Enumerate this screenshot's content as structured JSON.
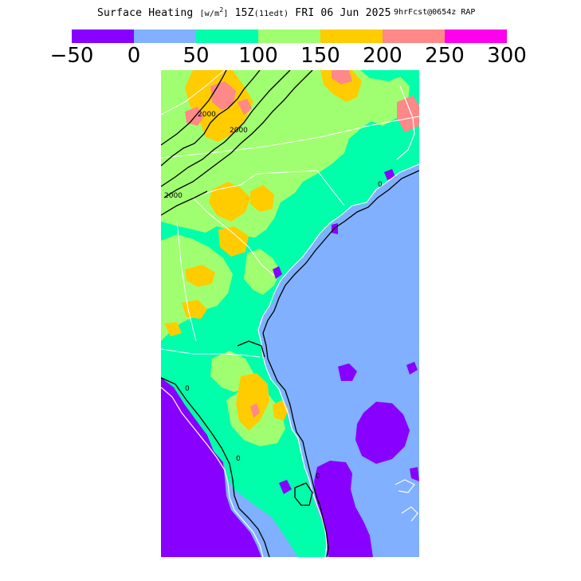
{
  "title": {
    "field": "Surface Heating",
    "unit_prefix": "[w/m",
    "unit_exp": "2",
    "unit_suffix": "]",
    "valid_time": "15Z",
    "local_time": "(11edt)",
    "date": "FRI 06 Jun 2025",
    "forecast": "9hrFcst@0654z",
    "model": "RAP"
  },
  "colorbar": {
    "colors": [
      "#8800ff",
      "#80b0ff",
      "#00ffaa",
      "#a0ff70",
      "#ffcc00",
      "#ff8888",
      "#ff00ee"
    ],
    "tick_labels": [
      "−50",
      "0",
      "50",
      "100",
      "150",
      "200",
      "250",
      "300"
    ]
  },
  "map": {
    "region": "US Southeast coast",
    "contour_labels": [
      "2000",
      "2000",
      "2000",
      "0",
      "0",
      "0",
      "0"
    ]
  }
}
